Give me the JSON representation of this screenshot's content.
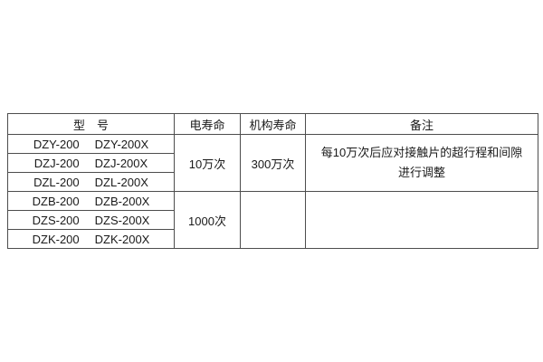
{
  "page": {
    "background_color": "#ffffff",
    "text_color": "#1a1a1a",
    "table_border_color": "#4d4d4d"
  },
  "table": {
    "headers": [
      "型　号",
      "电寿命",
      "机构寿命",
      "备注"
    ],
    "groups": [
      {
        "models": [
          [
            "DZY-200",
            "DZY-200X"
          ],
          [
            "DZJ-200",
            "DZJ-200X"
          ],
          [
            "DZL-200",
            "DZL-200X"
          ]
        ],
        "electrical_life": "10万次",
        "mechanical_life": "300万次",
        "remark_lines": [
          "每10万次后应对接触片的超行程和间隙",
          "进行调整"
        ]
      },
      {
        "models": [
          [
            "DZB-200",
            "DZB-200X"
          ],
          [
            "DZS-200",
            "DZS-200X"
          ],
          [
            "DZK-200",
            "DZK-200X"
          ]
        ],
        "electrical_life": "1000次",
        "mechanical_life": "",
        "remark_lines": [
          "",
          ""
        ]
      }
    ]
  }
}
